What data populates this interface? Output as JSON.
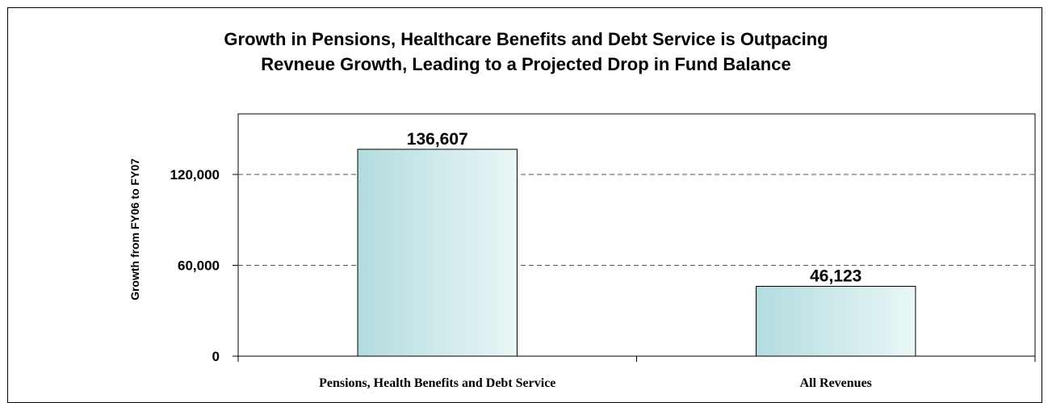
{
  "chart_data": {
    "type": "bar",
    "title_lines": [
      "Growth in Pensions, Healthcare Benefits and Debt Service is Outpacing",
      "Revneue Growth, Leading to a Projected Drop in Fund Balance"
    ],
    "ylabel": "Growth from FY06 to FY07",
    "xlabel": "",
    "categories": [
      "Pensions, Health Benefits and Debt Service",
      "All Revenues"
    ],
    "values": [
      136607,
      46123
    ],
    "data_labels": [
      "136,607",
      "46,123"
    ],
    "yticks": [
      0,
      60000,
      120000
    ],
    "ytick_labels": [
      "0",
      "60,000",
      "120,000"
    ],
    "ylim": [
      0,
      160000
    ],
    "grid": "dashed horizontal",
    "bar_fill": [
      "#b3dcdf",
      "#eaf6f6"
    ],
    "legend": "none"
  }
}
